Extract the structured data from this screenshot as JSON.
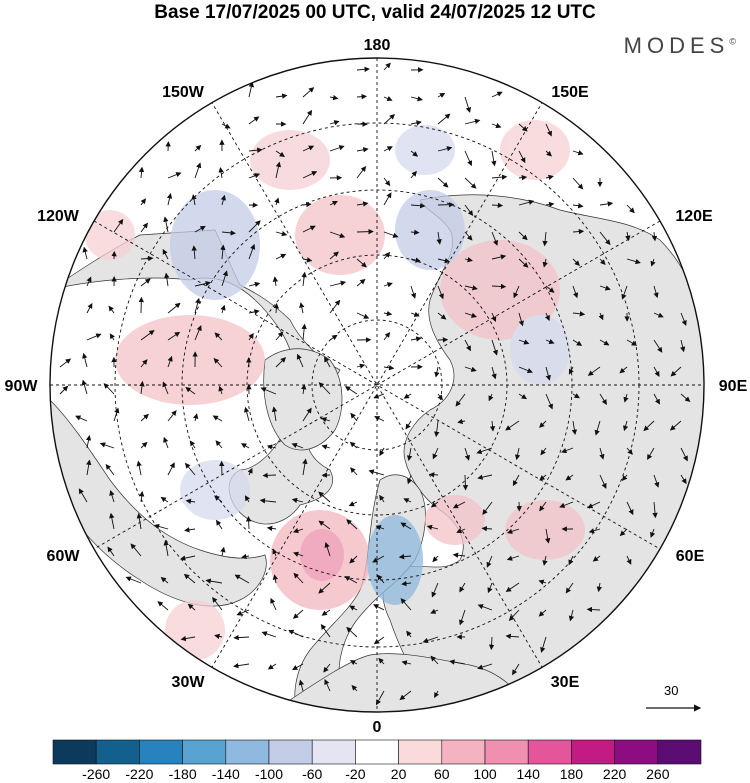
{
  "title": "Base 17/07/2025 00 UTC, valid 24/07/2025 12 UTC",
  "brand": "MODES",
  "brand_mark": "©",
  "map_labels": {
    "n180": "180",
    "n150w": "150W",
    "n150e": "150E",
    "n120w": "120W",
    "n120e": "120E",
    "n90w": "90W",
    "n90e": "90E",
    "n60w": "60W",
    "n60e": "60E",
    "n30w": "30W",
    "n30e": "30E",
    "n0": "0"
  },
  "reference_vector": {
    "label": "30"
  },
  "colorbar": {
    "ticks": [
      "-260",
      "-220",
      "-180",
      "-140",
      "-100",
      "-60",
      "-20",
      "20",
      "60",
      "100",
      "140",
      "180",
      "220",
      "260"
    ],
    "colors": [
      "#0c3a5c",
      "#135f8e",
      "#2683be",
      "#58a3d2",
      "#8fb9de",
      "#c4cde7",
      "#e4e4f2",
      "#ffffff",
      "#fadadb",
      "#f5b3c2",
      "#f08fb0",
      "#e4559c",
      "#c21b84",
      "#8e0c82",
      "#5b0d74"
    ]
  },
  "colors": {
    "land": "#e4e4e4",
    "ocean": "#ffffff",
    "positive": "#f3b8bf",
    "negative": "#b9c3e0"
  }
}
